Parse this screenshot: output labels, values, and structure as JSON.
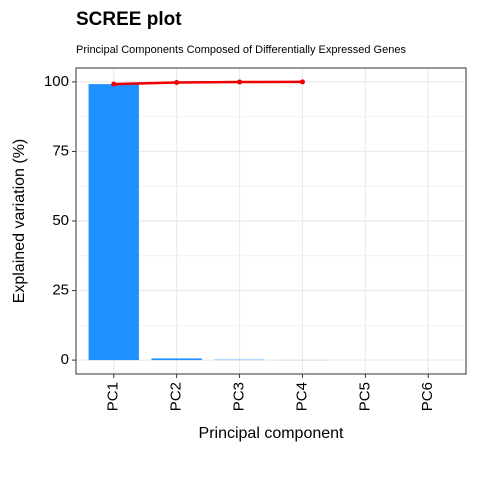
{
  "chart_data": {
    "type": "bar",
    "title": "SCREE plot",
    "subtitle": "Principal Components Composed of Differentially Expressed Genes",
    "x_label": "Principal component",
    "y_label": "Explained variation (%)",
    "categories": [
      "PC1",
      "PC2",
      "PC3",
      "PC4",
      "PC5",
      "PC6"
    ],
    "values": [
      99.2,
      0.6,
      0.15,
      0.05,
      0,
      0
    ],
    "color": "#1e90ff",
    "line_values": [
      99.2,
      99.8,
      99.95,
      100,
      null,
      null
    ],
    "line_color": "#ee0000",
    "ylim": [
      -5,
      105
    ],
    "yticks": [
      0,
      25,
      50,
      75,
      100
    ],
    "grid": true
  }
}
